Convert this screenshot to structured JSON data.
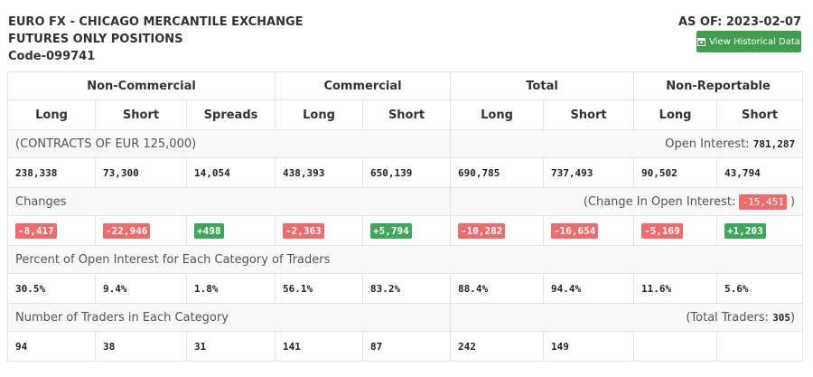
{
  "header": {
    "title_line1": "EURO FX - CHICAGO MERCANTILE EXCHANGE",
    "title_line2": "FUTURES ONLY POSITIONS",
    "code": "Code-099741",
    "as_of": "AS OF: 2023-02-07",
    "button_label": "View Historical Data",
    "button_icon": "calendar-icon"
  },
  "groups": [
    "Non-Commercial",
    "Commercial",
    "Total",
    "Non-Reportable"
  ],
  "columns": [
    "Long",
    "Short",
    "Spreads",
    "Long",
    "Short",
    "Long",
    "Short",
    "Long",
    "Short"
  ],
  "contracts": {
    "label": "(CONTRACTS OF EUR 125,000)",
    "open_interest_label": "Open Interest:",
    "open_interest_value": "781,287",
    "values": [
      "238,338",
      "73,300",
      "14,054",
      "438,393",
      "650,139",
      "690,785",
      "737,493",
      "90,502",
      "43,794"
    ]
  },
  "changes": {
    "label": "Changes",
    "change_oi_prefix": "(Change In Open Interest:",
    "change_oi_value": "-15,451",
    "change_oi_suffix": ")",
    "values": [
      "-8,417",
      "-22,946",
      "+498",
      "-2,363",
      "+5,794",
      "-10,282",
      "-16,654",
      "-5,169",
      "+1,203"
    ]
  },
  "percent": {
    "label": "Percent of Open Interest for Each Category of Traders",
    "values": [
      "30.5%",
      "9.4%",
      "1.8%",
      "56.1%",
      "83.2%",
      "88.4%",
      "94.4%",
      "11.6%",
      "5.6%"
    ]
  },
  "traders": {
    "label": "Number of Traders in Each Category",
    "total_prefix": "(Total Traders:",
    "total_value": "305",
    "total_suffix": ")",
    "values": [
      "94",
      "38",
      "31",
      "141",
      "87",
      "242",
      "149",
      "",
      ""
    ]
  },
  "colors": {
    "negative": "#f06b6b",
    "positive": "#3ea85a",
    "button": "#3f9f4f"
  }
}
